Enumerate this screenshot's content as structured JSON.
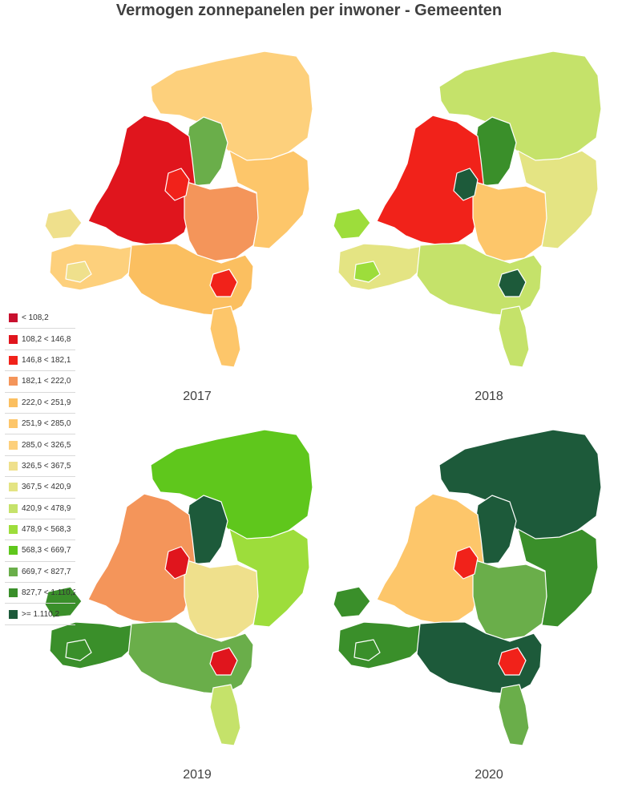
{
  "title": "Vermogen zonnepanelen per inwoner - Gemeenten",
  "legend": [
    {
      "label": "< 108,2",
      "color": "#c8102e"
    },
    {
      "label": "108,2 < 146,8",
      "color": "#e0151d"
    },
    {
      "label": "146,8 < 182,1",
      "color": "#f1221a"
    },
    {
      "label": "182,1 < 222,0",
      "color": "#f4955a"
    },
    {
      "label": "222,0 < 251,9",
      "color": "#fbbf60"
    },
    {
      "label": "251,9 < 285,0",
      "color": "#fdc66a"
    },
    {
      "label": "285,0 < 326,5",
      "color": "#fdd07c"
    },
    {
      "label": "326,5 < 367,5",
      "color": "#efe08c"
    },
    {
      "label": "367,5 < 420,9",
      "color": "#e4e483"
    },
    {
      "label": "420,9 < 478,9",
      "color": "#c5e26a"
    },
    {
      "label": "478,9 < 568,3",
      "color": "#9ddd3b"
    },
    {
      "label": "568,3 < 669,7",
      "color": "#5fc71c"
    },
    {
      "label": "669,7 < 827,7",
      "color": "#6aae4a"
    },
    {
      "label": "827,7 < 1.110,2",
      "color": "#3a8f2a"
    },
    {
      "label": ">= 1.110,2",
      "color": "#1d5a3a"
    }
  ],
  "maps": [
    {
      "year": "2017",
      "regions": {
        "north": 6,
        "west": 1,
        "center": 3,
        "east": 5,
        "southwest": 6,
        "south": 4,
        "limburg": 5,
        "flevoland": 12,
        "islands": 7,
        "accent": 2
      }
    },
    {
      "year": "2018",
      "regions": {
        "north": 9,
        "west": 2,
        "center": 5,
        "east": 8,
        "southwest": 8,
        "south": 9,
        "limburg": 9,
        "flevoland": 13,
        "islands": 10,
        "accent": 14
      }
    },
    {
      "year": "2019",
      "regions": {
        "north": 11,
        "west": 3,
        "center": 7,
        "east": 10,
        "southwest": 13,
        "south": 12,
        "limburg": 9,
        "flevoland": 14,
        "islands": 13,
        "accent": 1
      }
    },
    {
      "year": "2020",
      "regions": {
        "north": 14,
        "west": 5,
        "center": 12,
        "east": 13,
        "southwest": 13,
        "south": 14,
        "limburg": 12,
        "flevoland": 14,
        "islands": 13,
        "accent": 2
      }
    }
  ]
}
